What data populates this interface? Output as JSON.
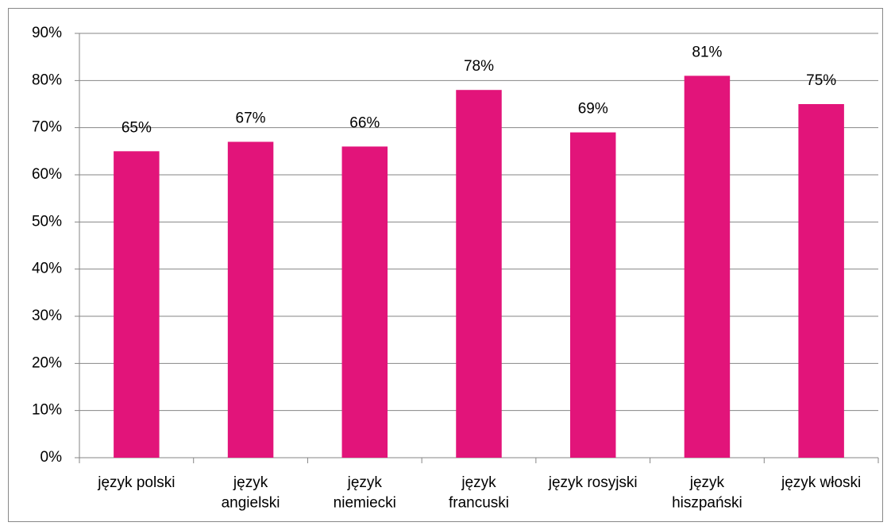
{
  "chart_data": {
    "type": "bar",
    "categories": [
      "język polski",
      "język\nangielski",
      "język\nniemiecki",
      "język\nfrancuski",
      "język rosyjski",
      "język\nhiszpański",
      "język włoski"
    ],
    "values": [
      65,
      67,
      66,
      78,
      69,
      81,
      75
    ],
    "value_labels": [
      "65%",
      "67%",
      "66%",
      "78%",
      "69%",
      "81%",
      "75%"
    ],
    "color": "#e2147a",
    "ylim": [
      0,
      90
    ],
    "yticks": [
      {
        "value": 0,
        "label": "0%"
      },
      {
        "value": 10,
        "label": "10%"
      },
      {
        "value": 20,
        "label": "20%"
      },
      {
        "value": 30,
        "label": "30%"
      },
      {
        "value": 40,
        "label": "40%"
      },
      {
        "value": 50,
        "label": "50%"
      },
      {
        "value": 60,
        "label": "60%"
      },
      {
        "value": 70,
        "label": "70%"
      },
      {
        "value": 80,
        "label": "80%"
      },
      {
        "value": 90,
        "label": "90%"
      }
    ],
    "grid": true
  }
}
